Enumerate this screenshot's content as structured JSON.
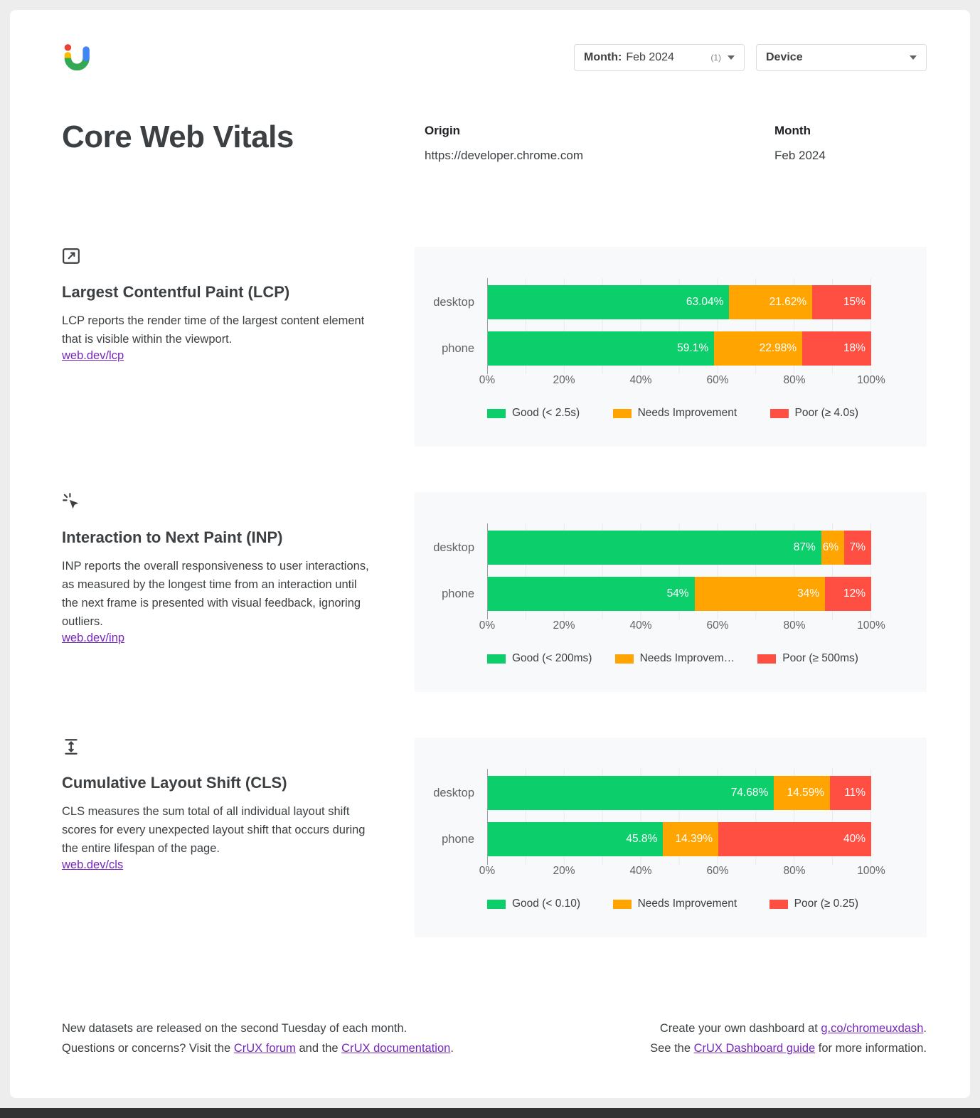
{
  "colors": {
    "good": "#0cce6b",
    "needs_improvement": "#ffa400",
    "poor": "#ff4e42",
    "link": "#7627bb",
    "logo_red": "#ea4335",
    "logo_yellow": "#fbbc04",
    "logo_green": "#34a853",
    "logo_blue": "#4285f4"
  },
  "header": {
    "month_filter": {
      "label": "Month:",
      "value": "Feb 2024",
      "count": "(1)"
    },
    "device_filter": {
      "label": "Device"
    }
  },
  "title": "Core Web Vitals",
  "meta": {
    "origin_label": "Origin",
    "origin_value": "https://developer.chrome.com",
    "month_label": "Month",
    "month_value": "Feb 2024"
  },
  "sections": [
    {
      "id": "lcp",
      "title": "Largest Contentful Paint (LCP)",
      "description": "LCP reports the render time of the largest content element that is visible within the viewport.",
      "link": "web.dev/lcp"
    },
    {
      "id": "inp",
      "title": "Interaction to Next Paint (INP)",
      "description": "INP reports the overall responsiveness to user interactions, as measured by the longest time from an interaction until the next frame is presented with visual feedback, ignoring outliers.",
      "link": "web.dev/inp"
    },
    {
      "id": "cls",
      "title": "Cumulative Layout Shift (CLS)",
      "description": "CLS measures the sum total of all individual layout shift scores for every unexpected layout shift that occurs during the entire lifespan of the page.",
      "link": "web.dev/cls"
    }
  ],
  "chart_data": [
    {
      "type": "bar",
      "metric": "LCP",
      "orientation": "horizontal-stacked",
      "categories": [
        "desktop",
        "phone"
      ],
      "series": [
        {
          "key": "good",
          "name": "Good (< 2.5s)",
          "color": "#0cce6b",
          "values": [
            63.04,
            59.1
          ],
          "labels": [
            "63.04%",
            "59.1%"
          ]
        },
        {
          "key": "needs_improvement",
          "name": "Needs Improvement",
          "color": "#ffa400",
          "values": [
            21.62,
            22.98
          ],
          "labels": [
            "21.62%",
            "22.98%"
          ]
        },
        {
          "key": "poor",
          "name": "Poor (≥ 4.0s)",
          "color": "#ff4e42",
          "values": [
            15.34,
            17.92
          ],
          "labels": [
            "15%",
            "18%"
          ]
        }
      ],
      "x_ticks": [
        "0%",
        "20%",
        "40%",
        "60%",
        "80%",
        "100%"
      ],
      "xlim": [
        0,
        100
      ],
      "legend_position": "bottom",
      "grid": true
    },
    {
      "type": "bar",
      "metric": "INP",
      "orientation": "horizontal-stacked",
      "categories": [
        "desktop",
        "phone"
      ],
      "series": [
        {
          "key": "good",
          "name": "Good (< 200ms)",
          "color": "#0cce6b",
          "values": [
            87,
            54
          ],
          "labels": [
            "87%",
            "54%"
          ]
        },
        {
          "key": "needs_improvement",
          "name": "Needs Improvem…",
          "color": "#ffa400",
          "values": [
            6,
            34
          ],
          "labels": [
            "6%",
            "34%"
          ]
        },
        {
          "key": "poor",
          "name": "Poor (≥ 500ms)",
          "color": "#ff4e42",
          "values": [
            7,
            12
          ],
          "labels": [
            "7%",
            "12%"
          ]
        }
      ],
      "x_ticks": [
        "0%",
        "20%",
        "40%",
        "60%",
        "80%",
        "100%"
      ],
      "xlim": [
        0,
        100
      ],
      "legend_position": "bottom",
      "grid": true
    },
    {
      "type": "bar",
      "metric": "CLS",
      "orientation": "horizontal-stacked",
      "categories": [
        "desktop",
        "phone"
      ],
      "series": [
        {
          "key": "good",
          "name": "Good (< 0.10)",
          "color": "#0cce6b",
          "values": [
            74.68,
            45.8
          ],
          "labels": [
            "74.68%",
            "45.8%"
          ]
        },
        {
          "key": "needs_improvement",
          "name": "Needs Improvement",
          "color": "#ffa400",
          "values": [
            14.59,
            14.39
          ],
          "labels": [
            "14.59%",
            "14.39%"
          ]
        },
        {
          "key": "poor",
          "name": "Poor (≥ 0.25)",
          "color": "#ff4e42",
          "values": [
            10.73,
            39.81
          ],
          "labels": [
            "11%",
            "40%"
          ]
        }
      ],
      "x_ticks": [
        "0%",
        "20%",
        "40%",
        "60%",
        "80%",
        "100%"
      ],
      "xlim": [
        0,
        100
      ],
      "legend_position": "bottom",
      "grid": true
    }
  ],
  "footer": {
    "left_line1": "New datasets are released on the second Tuesday of each month.",
    "left_line2_prefix": "Questions or concerns? Visit the ",
    "left_link1": "CrUX forum",
    "left_line2_mid": " and the ",
    "left_link2": "CrUX documentation",
    "left_line2_suffix": ".",
    "right_line1_prefix": "Create your own dashboard at ",
    "right_link1": "g.co/chromeuxdash",
    "right_line1_suffix": ".",
    "right_line2_prefix": "See the ",
    "right_link2": "CrUX Dashboard guide",
    "right_line2_suffix": " for more information."
  }
}
